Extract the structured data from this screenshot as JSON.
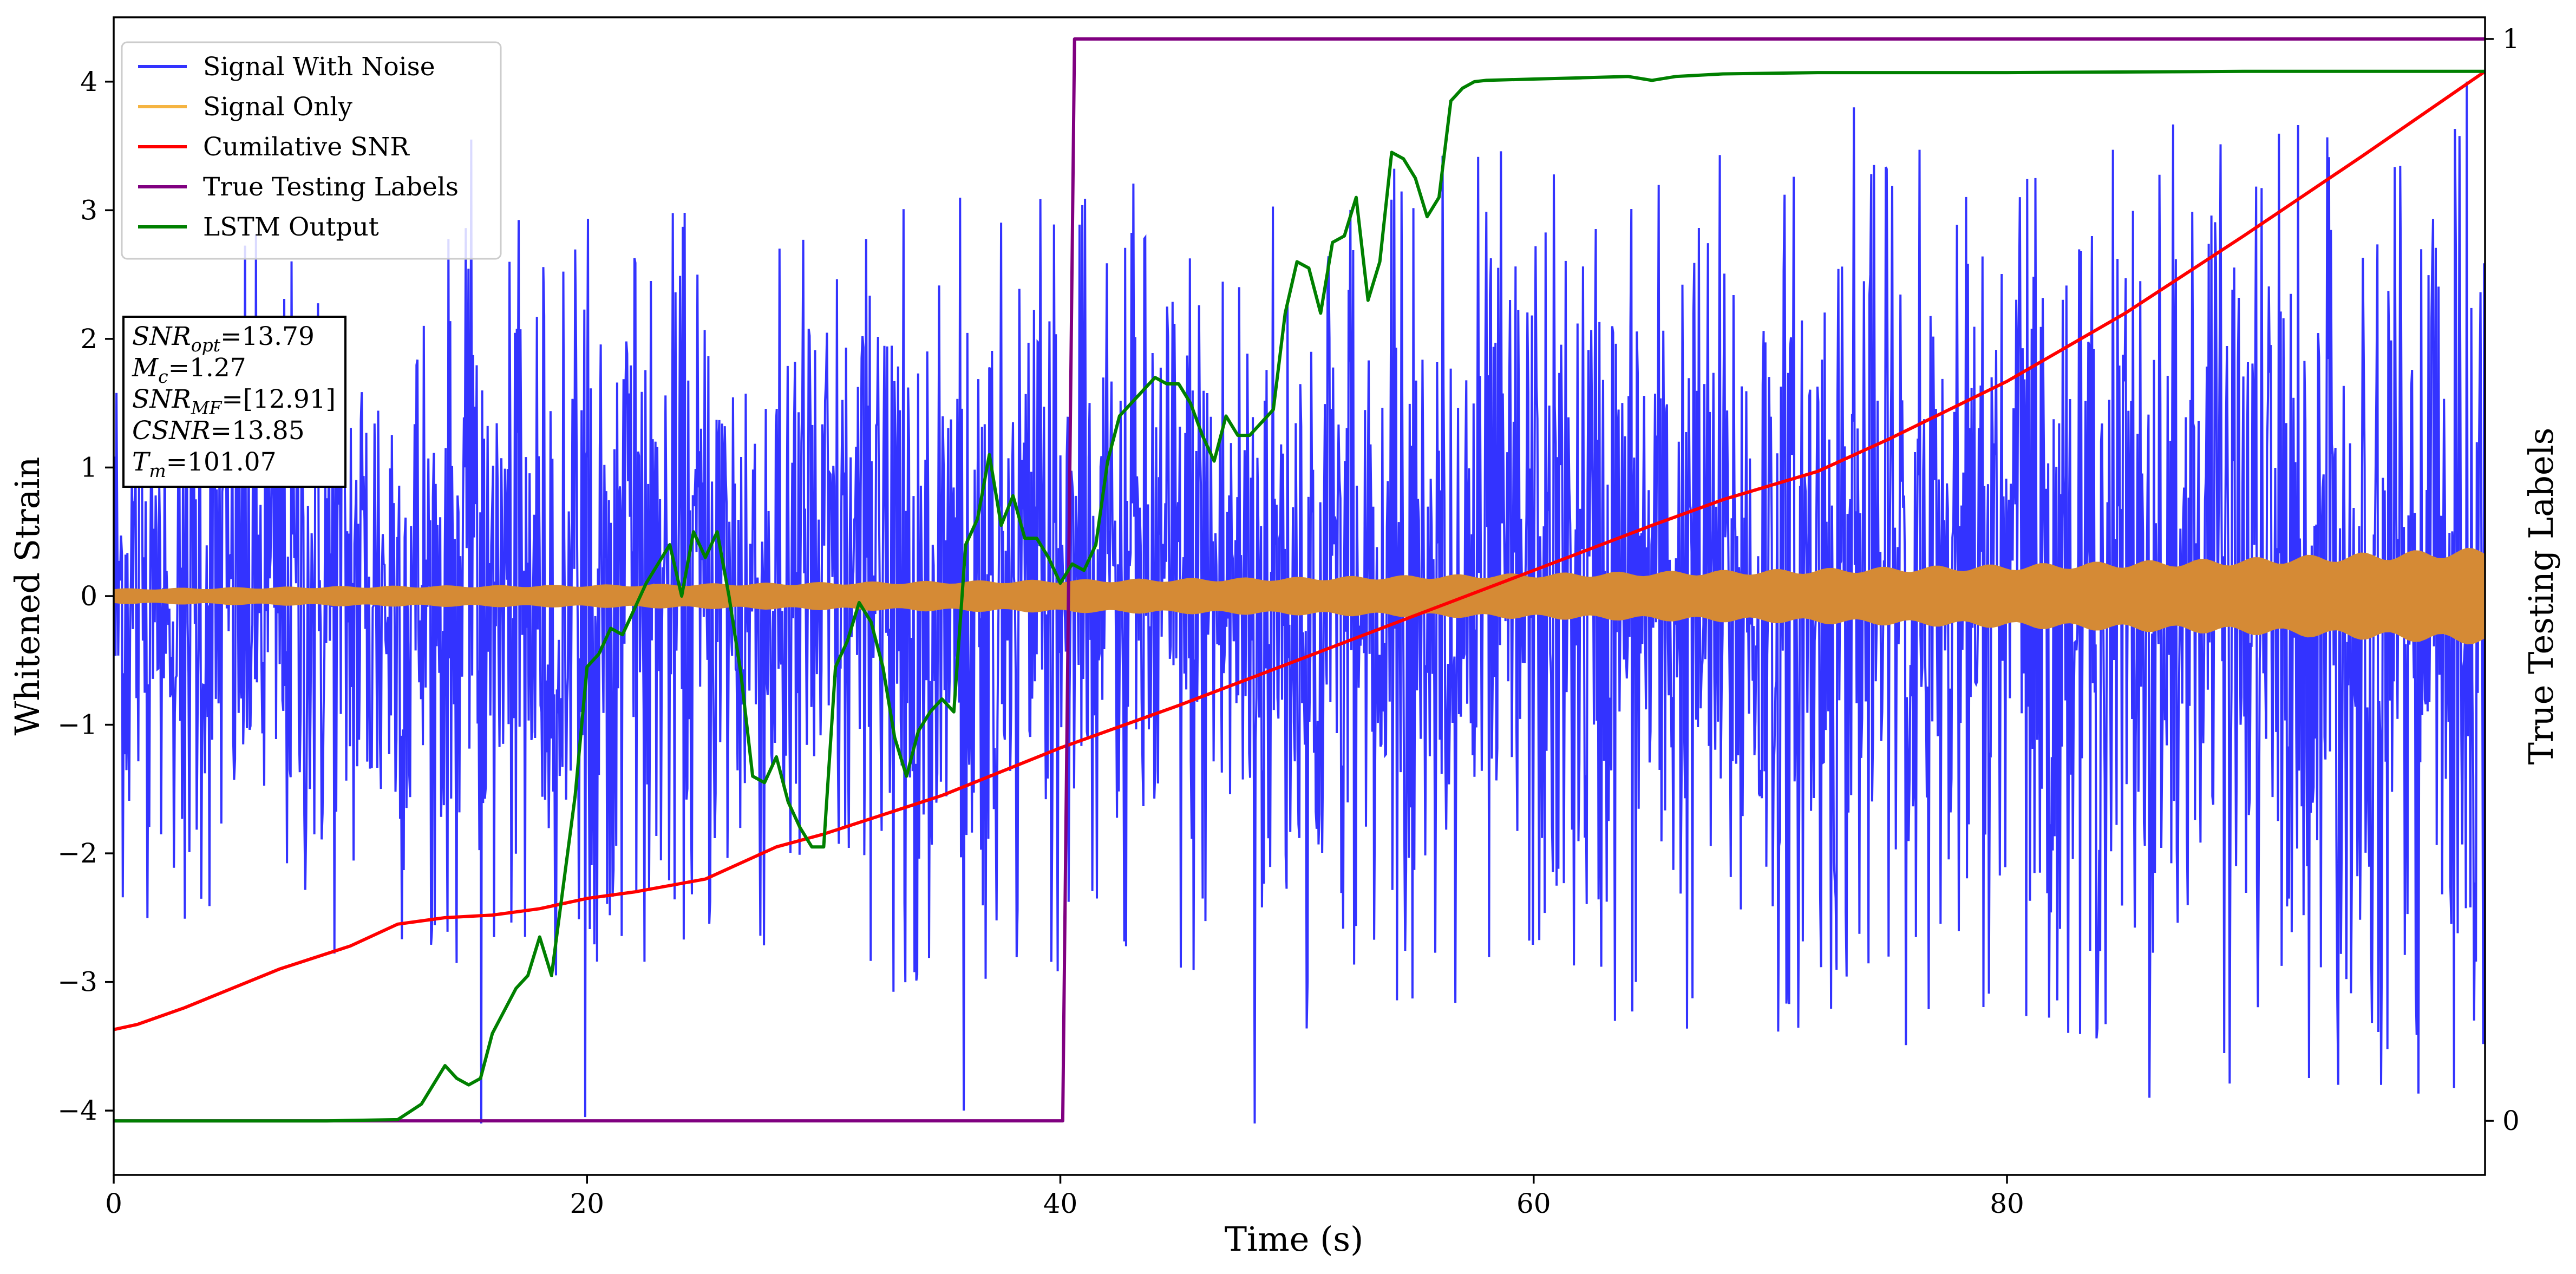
{
  "chart_data": {
    "type": "line",
    "xlabel": "Time (s)",
    "ylabel_left": "Whitened Strain",
    "ylabel_right": "True Testing Labels",
    "xlim": [
      0,
      100.2
    ],
    "ylim_left": [
      -4.5,
      4.5
    ],
    "ylim_right": [
      -0.05,
      1.02
    ],
    "x_ticks": [
      0,
      20,
      40,
      60,
      80
    ],
    "x_tick_labels": [
      "0",
      "20",
      "40",
      "60",
      "80"
    ],
    "y_left_ticks": [
      -4,
      -3,
      -2,
      -1,
      0,
      1,
      2,
      3,
      4
    ],
    "y_left_tick_labels": [
      "−4",
      "−3",
      "−2",
      "−1",
      "0",
      "1",
      "2",
      "3",
      "4"
    ],
    "y_right_ticks": [
      0,
      1
    ],
    "y_right_tick_labels": [
      "0",
      "1"
    ],
    "grid": false,
    "legend_position": "top-left",
    "series": [
      {
        "name": "Signal With Noise",
        "color": "#3333ff",
        "axis": "left",
        "kind": "noise",
        "x_range": [
          0,
          100.2
        ],
        "envelope_x": [
          0,
          10,
          20,
          30,
          40,
          50,
          60,
          70,
          80,
          90,
          100
        ],
        "envelope_y": [
          2.7,
          2.9,
          3.0,
          3.1,
          3.2,
          3.4,
          3.5,
          3.6,
          3.7,
          3.8,
          3.9
        ],
        "spikes": [
          {
            "x": 15.5,
            "y": -4.1
          },
          {
            "x": 19.9,
            "y": -4.05
          },
          {
            "x": 48.2,
            "y": -4.1
          },
          {
            "x": 35.9,
            "y": -4.0
          },
          {
            "x": 86.0,
            "y": -3.9
          },
          {
            "x": 95.8,
            "y": -3.8
          },
          {
            "x": 99.4,
            "y": 4.0
          },
          {
            "x": 15.1,
            "y": 3.55
          },
          {
            "x": 73.5,
            "y": 3.8
          }
        ]
      },
      {
        "name": "Signal Only",
        "color": "#f5b441",
        "fill_color": "#d58a35",
        "axis": "left",
        "kind": "band",
        "x": [
          0,
          10,
          20,
          30,
          40,
          50,
          60,
          70,
          80,
          90,
          100
        ],
        "amplitude": [
          0.06,
          0.08,
          0.09,
          0.11,
          0.13,
          0.15,
          0.18,
          0.21,
          0.25,
          0.3,
          0.38
        ]
      },
      {
        "name": "Cumilative SNR",
        "color": "#ff0000",
        "axis": "left",
        "x": [
          0,
          1,
          3,
          5,
          7,
          10,
          12,
          14,
          16,
          18,
          20,
          22,
          25,
          28,
          30,
          35,
          40,
          45,
          50,
          55,
          60,
          65,
          68,
          72,
          75,
          80,
          85,
          90,
          95,
          100.2
        ],
        "y": [
          -3.37,
          -3.33,
          -3.2,
          -3.05,
          -2.9,
          -2.72,
          -2.55,
          -2.5,
          -2.48,
          -2.43,
          -2.35,
          -2.3,
          -2.2,
          -1.95,
          -1.85,
          -1.55,
          -1.18,
          -0.85,
          -0.5,
          -0.15,
          0.2,
          0.55,
          0.75,
          0.97,
          1.22,
          1.67,
          2.2,
          2.8,
          3.42,
          4.08
        ]
      },
      {
        "name": "True Testing Labels",
        "color": "#800080",
        "axis": "right",
        "x": [
          0,
          40.1,
          40.6,
          100.2
        ],
        "y": [
          0,
          0,
          1,
          1
        ]
      },
      {
        "name": "LSTM Output",
        "color": "#008000",
        "axis": "left",
        "x": [
          0,
          9.0,
          12.0,
          13.0,
          13.5,
          14.0,
          14.5,
          15.0,
          15.5,
          16.0,
          17.0,
          17.5,
          18.0,
          18.5,
          19.0,
          19.5,
          20.0,
          20.5,
          21.0,
          21.5,
          22.0,
          22.5,
          23.0,
          23.5,
          24.0,
          24.5,
          25.0,
          25.5,
          26.0,
          26.5,
          27.0,
          27.5,
          28.0,
          28.5,
          29.0,
          29.5,
          30.0,
          30.5,
          31.0,
          31.5,
          32.0,
          32.5,
          33.0,
          33.5,
          34.0,
          34.5,
          35.0,
          35.5,
          36.0,
          36.5,
          37.0,
          37.5,
          38.0,
          38.5,
          39.0,
          39.5,
          40.0,
          40.5,
          41.0,
          41.5,
          42.0,
          42.5,
          43.0,
          43.5,
          44.0,
          44.5,
          45.0,
          45.5,
          46.0,
          46.5,
          47.0,
          47.5,
          48.0,
          48.5,
          49.0,
          49.5,
          50.0,
          50.5,
          51.0,
          51.5,
          52.0,
          52.5,
          53.0,
          53.5,
          54.0,
          54.5,
          55.0,
          55.5,
          56.0,
          56.5,
          57.0,
          57.5,
          58.0,
          60.0,
          62.0,
          64.0,
          65.0,
          66.0,
          68.0,
          72.0,
          80.0,
          90.0,
          100.2
        ],
        "y": [
          -4.08,
          -4.08,
          -4.07,
          -3.95,
          -3.8,
          -3.65,
          -3.75,
          -3.8,
          -3.75,
          -3.4,
          -3.05,
          -2.95,
          -2.65,
          -2.95,
          -2.25,
          -1.55,
          -0.55,
          -0.45,
          -0.25,
          -0.3,
          -0.1,
          0.1,
          0.25,
          0.4,
          0.0,
          0.5,
          0.3,
          0.5,
          0.0,
          -0.6,
          -1.4,
          -1.45,
          -1.25,
          -1.6,
          -1.8,
          -1.95,
          -1.95,
          -0.55,
          -0.35,
          -0.05,
          -0.2,
          -0.55,
          -1.1,
          -1.4,
          -1.05,
          -0.9,
          -0.8,
          -0.9,
          0.4,
          0.6,
          1.1,
          0.55,
          0.78,
          0.45,
          0.45,
          0.3,
          0.1,
          0.25,
          0.2,
          0.4,
          1.05,
          1.4,
          1.5,
          1.6,
          1.7,
          1.65,
          1.65,
          1.5,
          1.25,
          1.05,
          1.4,
          1.25,
          1.25,
          1.35,
          1.45,
          2.2,
          2.6,
          2.55,
          2.2,
          2.75,
          2.8,
          3.1,
          2.3,
          2.6,
          3.45,
          3.4,
          3.25,
          2.95,
          3.1,
          3.85,
          3.95,
          4.0,
          4.01,
          4.02,
          4.03,
          4.04,
          4.01,
          4.04,
          4.06,
          4.07,
          4.07,
          4.08,
          4.08
        ]
      }
    ],
    "legend": [
      {
        "label": "Signal With Noise",
        "color": "#3333ff"
      },
      {
        "label": "Signal Only",
        "color": "#f5b441"
      },
      {
        "label": "Cumilative SNR",
        "color": "#ff0000"
      },
      {
        "label": "True Testing Labels",
        "color": "#800080"
      },
      {
        "label": "LSTM Output",
        "color": "#008000"
      }
    ],
    "annotation": [
      {
        "base": "SNR",
        "sub": "opt",
        "value": "=13.79"
      },
      {
        "base": "M",
        "sub": "c",
        "value": "=1.27"
      },
      {
        "base": "SNR",
        "sub": "MF",
        "value": "=[12.91]"
      },
      {
        "base": "CSNR",
        "sub": "",
        "value": "=13.85"
      },
      {
        "base": "T",
        "sub": "m",
        "value": "=101.07"
      }
    ]
  }
}
